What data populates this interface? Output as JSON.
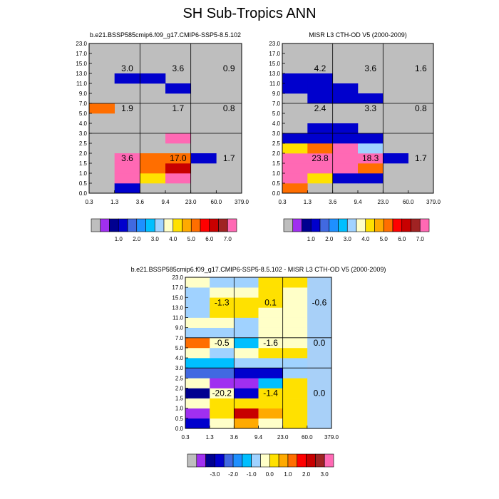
{
  "title": "SH Sub-Tropics ANN",
  "chart_data": [
    {
      "type": "heatmap",
      "title": "b.e21.BSSP585cmip6.f09_g17.CMIP6-SSP5-8.5.102",
      "x_ticks": [
        "0.3",
        "1.3",
        "3.6",
        "9.4",
        "23.0",
        "60.0",
        "379.0"
      ],
      "y_ticks": [
        "0.0",
        "0.5",
        "1.0",
        "1.5",
        "2.0",
        "2.5",
        "3.0",
        "4.0",
        "5.0",
        "7.0",
        "9.0",
        "11.0",
        "13.0",
        "15.0",
        "17.0",
        "23.0"
      ],
      "background_color": "#bebebe",
      "grid_values": [
        [
          null,
          1,
          null,
          null,
          null,
          null
        ],
        [
          null,
          8,
          4,
          8,
          null,
          null
        ],
        [
          null,
          8,
          5,
          6,
          null,
          null
        ],
        [
          null,
          8,
          5,
          5,
          1,
          null
        ],
        [
          null,
          null,
          null,
          null,
          null,
          null
        ],
        [
          null,
          null,
          null,
          8,
          null,
          null
        ],
        [
          null,
          null,
          null,
          null,
          null,
          null
        ],
        [
          null,
          null,
          null,
          null,
          null,
          null
        ],
        [
          5,
          null,
          null,
          null,
          null,
          null
        ],
        [
          null,
          null,
          null,
          null,
          null,
          null
        ],
        [
          null,
          null,
          null,
          1,
          null,
          null
        ],
        [
          null,
          1,
          1,
          null,
          null,
          null
        ],
        [
          null,
          null,
          null,
          null,
          null,
          null
        ],
        [
          null,
          null,
          null,
          null,
          null,
          null
        ],
        [
          null,
          null,
          null,
          null,
          null,
          null
        ]
      ],
      "region_totals": [
        {
          "label": "3.0",
          "col": 1,
          "row": 12
        },
        {
          "label": "3.6",
          "col": 3,
          "row": 12
        },
        {
          "label": "0.9",
          "col": 5,
          "row": 12
        },
        {
          "label": "1.9",
          "col": 1,
          "row": 8
        },
        {
          "label": "1.7",
          "col": 3,
          "row": 8
        },
        {
          "label": "0.8",
          "col": 5,
          "row": 8
        },
        {
          "label": "3.6",
          "col": 1,
          "row": 3
        },
        {
          "label": "17.0",
          "col": 3,
          "row": 3
        },
        {
          "label": "1.7",
          "col": 5,
          "row": 3
        }
      ],
      "colorbar_labels": [
        "1.0",
        "2.0",
        "3.0",
        "4.0",
        "5.0",
        "6.0",
        "7.0"
      ]
    },
    {
      "type": "heatmap",
      "title": "MISR L3 CTH-OD V5 (2000-2009)",
      "x_ticks": [
        "0.3",
        "1.3",
        "3.6",
        "9.4",
        "23.0",
        "60.0",
        "379.0"
      ],
      "y_ticks": [
        "0.0",
        "0.5",
        "1.0",
        "1.5",
        "2.0",
        "2.5",
        "3.0",
        "4.0",
        "5.0",
        "7.0",
        "9.0",
        "11.0",
        "13.0",
        "15.0",
        "17.0",
        "23.0"
      ],
      "background_color": "#bebebe",
      "grid_values": [
        [
          5,
          null,
          null,
          null,
          null,
          null
        ],
        [
          9,
          4,
          1,
          1,
          null,
          null
        ],
        [
          9,
          11,
          9,
          5,
          null,
          null
        ],
        [
          11,
          9,
          11,
          7,
          1,
          null
        ],
        [
          4,
          5,
          7,
          3,
          null,
          null
        ],
        [
          1,
          1,
          1,
          1,
          null,
          null
        ],
        [
          null,
          1,
          1,
          null,
          null,
          null
        ],
        [
          null,
          null,
          null,
          null,
          null,
          null
        ],
        [
          null,
          null,
          null,
          null,
          null,
          null
        ],
        [
          null,
          1,
          1,
          1,
          null,
          null
        ],
        [
          1,
          1,
          1,
          null,
          null,
          null
        ],
        [
          1,
          1,
          null,
          null,
          null,
          null
        ],
        [
          null,
          null,
          null,
          null,
          null,
          null
        ],
        [
          null,
          null,
          null,
          null,
          null,
          null
        ],
        [
          null,
          null,
          null,
          null,
          null,
          null
        ]
      ],
      "region_totals": [
        {
          "label": "4.2",
          "col": 1,
          "row": 12
        },
        {
          "label": "3.6",
          "col": 3,
          "row": 12
        },
        {
          "label": "1.6",
          "col": 5,
          "row": 12
        },
        {
          "label": "2.4",
          "col": 1,
          "row": 8
        },
        {
          "label": "3.3",
          "col": 3,
          "row": 8
        },
        {
          "label": "0.8",
          "col": 5,
          "row": 8
        },
        {
          "label": "23.8",
          "col": 1,
          "row": 3
        },
        {
          "label": "18.3",
          "col": 3,
          "row": 3
        },
        {
          "label": "1.7",
          "col": 5,
          "row": 3
        }
      ],
      "colorbar_labels": [
        "1.0",
        "2.0",
        "3.0",
        "4.0",
        "5.0",
        "6.0",
        "7.0"
      ]
    },
    {
      "type": "heatmap",
      "title": "b.e21.BSSP585cmip6.f09_g17.CMIP6-SSP5-8.5.102 - MISR L3 CTH-OD V5 (2000-2009)",
      "x_ticks": [
        "0.3",
        "1.3",
        "3.6",
        "9.4",
        "23.0",
        "60.0",
        "379.0"
      ],
      "y_ticks": [
        "0.0",
        "0.5",
        "1.0",
        "1.5",
        "2.0",
        "2.5",
        "3.0",
        "4.0",
        "5.0",
        "7.0",
        "9.0",
        "11.0",
        "13.0",
        "15.0",
        "17.0",
        "23.0"
      ],
      "background_color": "#a8d0f8",
      "grid_values": [
        [
          -2.8,
          -0.1,
          0.8,
          -0.1,
          0.0,
          null
        ],
        [
          -3.8,
          0.2,
          2.2,
          0.6,
          0.1,
          null
        ],
        [
          -0.4,
          0.1,
          0.0,
          0.1,
          0.3,
          null
        ],
        [
          -3.2,
          -0.3,
          -2.8,
          0.2,
          0.1,
          null
        ],
        [
          -0.3,
          -3.6,
          -3.6,
          -1.2,
          0.1,
          null
        ],
        [
          -2.2,
          -2.4,
          -2.6,
          -2.6,
          -0.6,
          null
        ],
        [
          -1.2,
          -1.2,
          -0.9,
          -0.9,
          -0.6,
          null
        ],
        [
          -0.4,
          -0.6,
          -0.4,
          0.2,
          0.1,
          null
        ],
        [
          1.2,
          -0.4,
          -1.2,
          -0.4,
          -0.4,
          null
        ],
        [
          -0.6,
          -0.6,
          -0.6,
          -0.5,
          -0.2,
          null
        ],
        [
          -0.4,
          -0.4,
          -0.6,
          -0.4,
          -0.3,
          null
        ],
        [
          -0.6,
          0.1,
          0.1,
          -0.4,
          -0.4,
          null
        ],
        [
          -0.6,
          0.1,
          0.1,
          0.2,
          -0.4,
          null
        ],
        [
          -0.6,
          -0.5,
          -0.5,
          0.1,
          -0.4,
          null
        ],
        [
          -0.5,
          -0.6,
          -0.6,
          0.2,
          0.1,
          null
        ]
      ],
      "region_totals": [
        {
          "label": "-1.3",
          "col": 1,
          "row": 12
        },
        {
          "label": "0.1",
          "col": 3,
          "row": 12
        },
        {
          "label": "-0.6",
          "col": 5,
          "row": 12
        },
        {
          "label": "-0.5",
          "col": 1,
          "row": 8
        },
        {
          "label": "-1.6",
          "col": 3,
          "row": 8
        },
        {
          "label": "0.0",
          "col": 5,
          "row": 8
        },
        {
          "label": "-20.2",
          "col": 1,
          "row": 3
        },
        {
          "label": "-1.4",
          "col": 3,
          "row": 3
        },
        {
          "label": "0.0",
          "col": 5,
          "row": 3
        }
      ],
      "colorbar_labels": [
        "-3.0",
        "-2.0",
        "-1.0",
        "0.0",
        "1.0",
        "2.0",
        "3.0"
      ]
    }
  ],
  "colors": {
    "missing": "#bebebe",
    "seq": [
      "#a02ff0",
      "#000090",
      "#0000cd",
      "#4169e1",
      "#1e90ff",
      "#00bfff",
      "#a0d2ff",
      "#ffffc8",
      "#ffe100",
      "#ffaa00",
      "#ff6e00",
      "#ff0000",
      "#c80000",
      "#a02323",
      "#ff69b4"
    ],
    "diff": [
      "#a02ff0",
      "#000090",
      "#0000cd",
      "#4169e1",
      "#1e90ff",
      "#00bfff",
      "#a0d2ff",
      "#ffffc8",
      "#ffe100",
      "#ffaa00",
      "#ff6e00",
      "#ff0000",
      "#c80000",
      "#a02323",
      "#ff69b4"
    ]
  }
}
